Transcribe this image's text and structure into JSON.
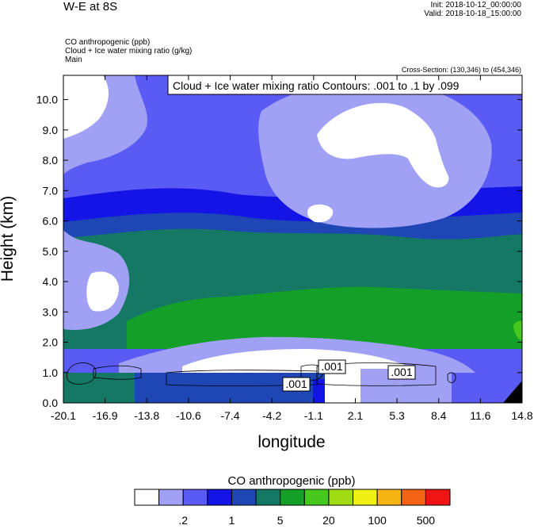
{
  "header": {
    "title": "W-E at 8S",
    "init": "Init: 2018-10-12_00:00:00",
    "valid": "Valid: 2018-10-18_15:00:00",
    "field1": "CO anthropogenic   (ppb)",
    "field2": "Cloud + Ice water mixing ratio   (g/kg)",
    "field3": "Main",
    "cross_section": "Cross-Section: (130,346) to (454,346)",
    "contour_box": "Cloud + Ice water mixing ratio Contours: .001 to .1 by .099"
  },
  "chart_data": {
    "type": "heatmap",
    "title": "W-E at 8S",
    "xlabel": "longitude",
    "ylabel": "Height (km)",
    "x_ticks": [
      "-20.1",
      "-16.9",
      "-13.8",
      "-10.6",
      "-7.4",
      "-4.2",
      "-1.1",
      "2.1",
      "5.3",
      "8.4",
      "11.6",
      "14.8"
    ],
    "y_ticks": [
      "0.0",
      "1.0",
      "2.0",
      "3.0",
      "4.0",
      "5.0",
      "6.0",
      "7.0",
      "8.0",
      "9.0",
      "10.0"
    ],
    "ylim": [
      0,
      10.8
    ],
    "colorbar": {
      "title": "CO anthropogenic  (ppb)",
      "labels": [
        ".2",
        "1",
        "5",
        "20",
        "100",
        "500"
      ],
      "colors": [
        "#ffffff",
        "#a0a0f5",
        "#5a5af5",
        "#1414e6",
        "#1e46b4",
        "#147864",
        "#14a028",
        "#46c81e",
        "#a0dc14",
        "#f0f014",
        "#f5b414",
        "#f56414",
        "#f01414"
      ]
    },
    "contour_labels": [
      ".001",
      ".001",
      ".001"
    ],
    "field_colors": {
      "white": "#ffffff",
      "light_blue": "#a0a0f5",
      "medium_blue": "#5a5af5",
      "blue": "#1414e6",
      "dark_blue": "#1e46b4",
      "teal": "#147864",
      "green": "#14a028",
      "light_green": "#46c81e"
    }
  }
}
